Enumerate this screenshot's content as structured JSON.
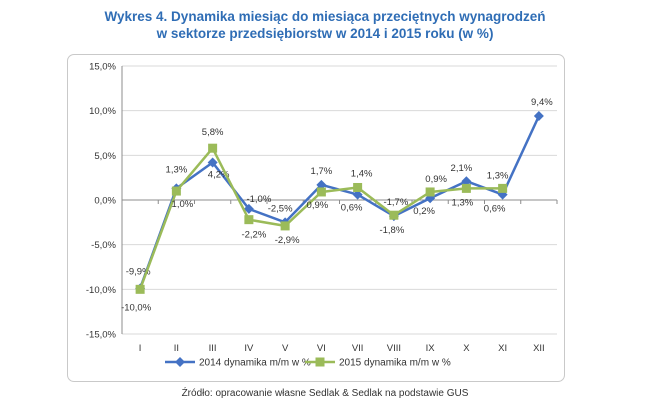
{
  "chart_data": {
    "type": "line",
    "title_line1": "Wykres 4. Dynamika miesiąc do miesiąca przeciętnych wynagrodzeń",
    "title_line2": "w sektorze przedsiębiorstw w 2014 i 2015 roku (w %)",
    "categories": [
      "I",
      "II",
      "III",
      "IV",
      "V",
      "VI",
      "VII",
      "VIII",
      "IX",
      "X",
      "XI",
      "XII"
    ],
    "ylim": [
      -15,
      15
    ],
    "yticks": [
      15,
      10,
      5,
      0,
      -5,
      -10,
      -15
    ],
    "ytick_labels": [
      "15,0%",
      "10,0%",
      "5,0%",
      "0,0%",
      "-5,0%",
      "-10,0%",
      "-15,0%"
    ],
    "grid": true,
    "legend_position": "bottom",
    "series": [
      {
        "name": "2014 dynamika m/m w %",
        "color": "#4472c4",
        "marker": "diamond",
        "values": [
          -9.9,
          1.3,
          4.2,
          -1.0,
          -2.5,
          1.7,
          0.6,
          -1.8,
          0.2,
          2.1,
          0.6,
          9.4
        ],
        "labels": [
          "-9,9%",
          "1,3%",
          "4,2%",
          "-1,0%",
          "-2,5%",
          "1,7%",
          "0,6%",
          "-1,8%",
          "0,2%",
          "2,1%",
          "0,6%",
          "9,4%"
        ]
      },
      {
        "name": "2015 dynamika m/m w %",
        "color": "#9bbb59",
        "marker": "square",
        "values": [
          -10.0,
          1.0,
          5.8,
          -2.2,
          -2.9,
          0.9,
          1.4,
          -1.7,
          0.9,
          1.3,
          1.3,
          null
        ],
        "labels": [
          "-10,0%",
          "1,0%",
          "5,8%",
          "-2,2%",
          "-2,9%",
          "0,9%",
          "1,4%",
          "-1,7%",
          "0,9%",
          "1,3%",
          "1,3%",
          ""
        ]
      }
    ]
  },
  "source": "Źródło: opracowanie własne Sedlak & Sedlak na podstawie GUS"
}
